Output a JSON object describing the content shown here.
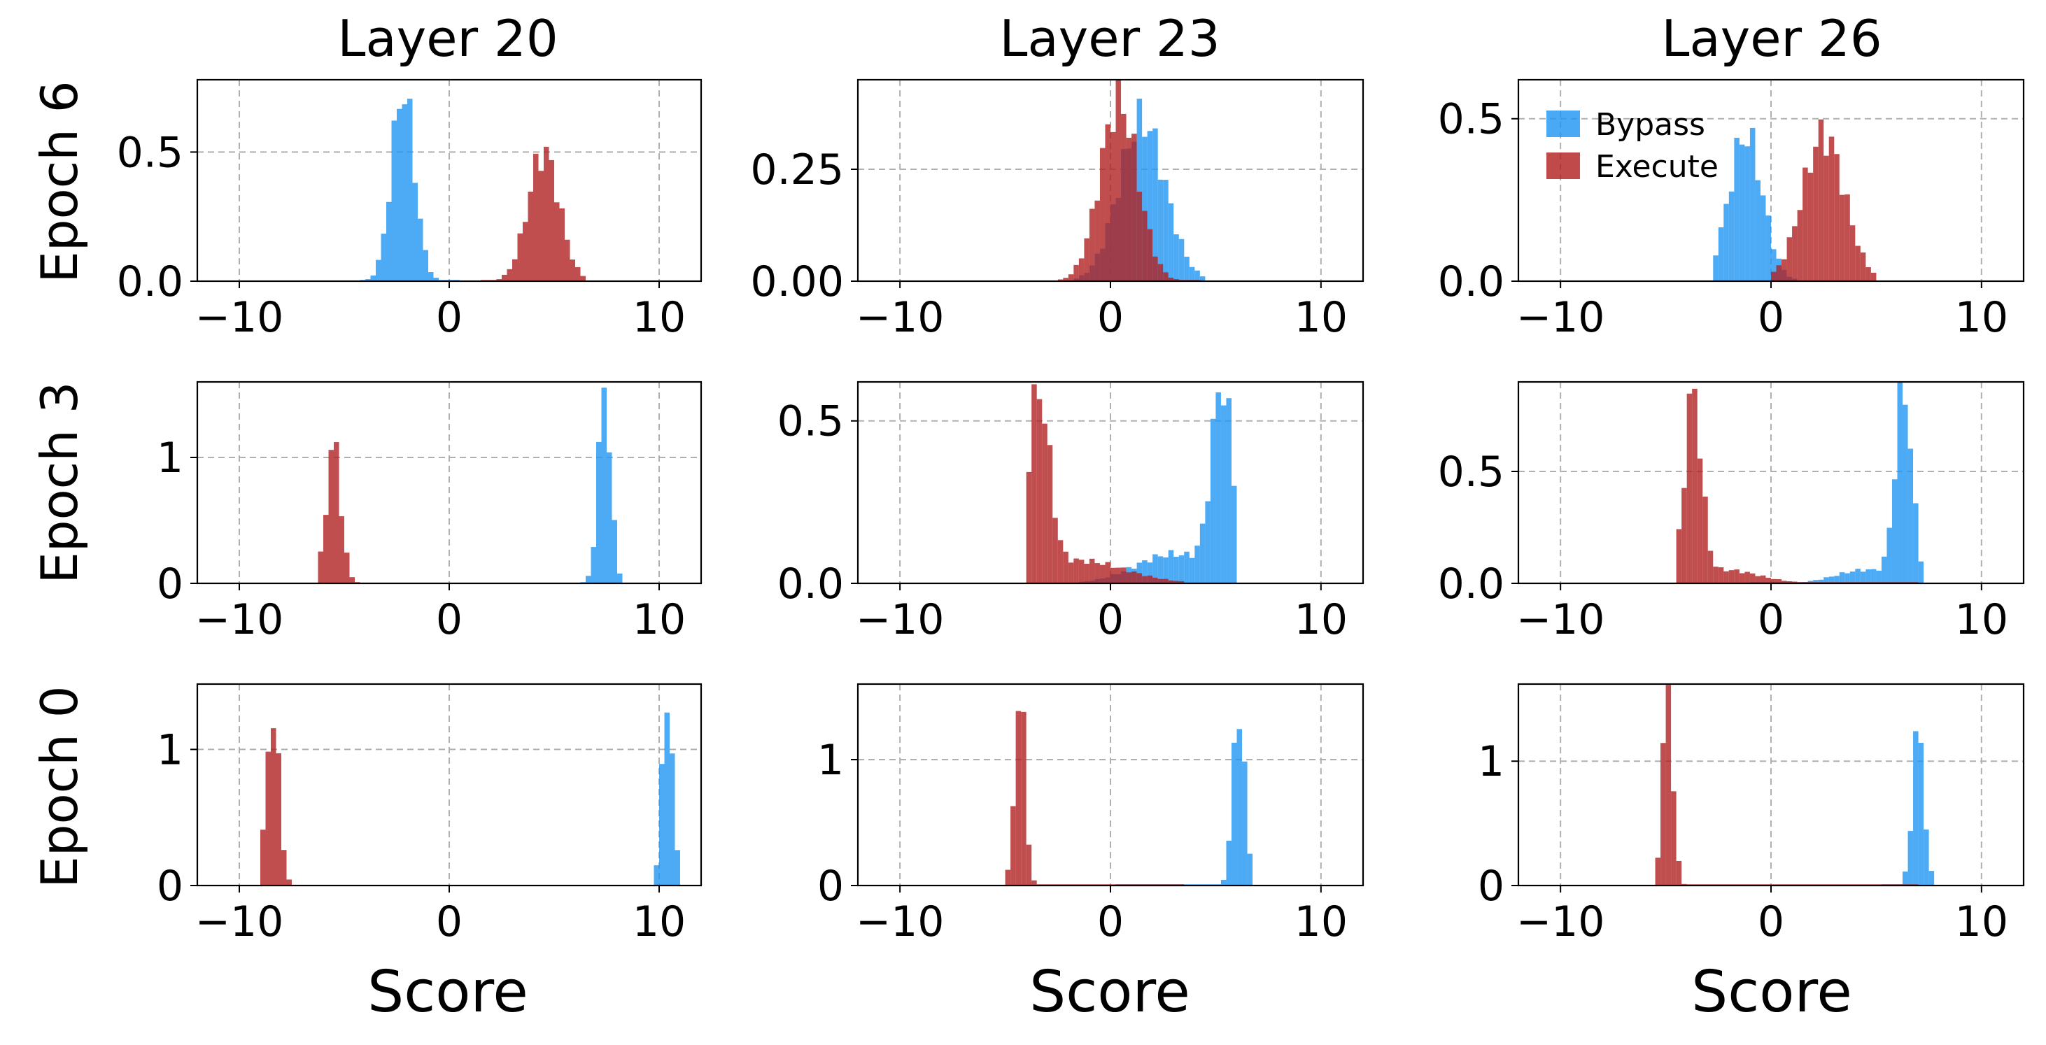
{
  "colors": {
    "bypass": "#2196f3",
    "execute": "#b22222",
    "grid": "#b0b0b0"
  },
  "legend": {
    "placement": "upper-left",
    "panel": "Epoch 6 / Layer 26",
    "entries": [
      "Bypass",
      "Execute"
    ]
  },
  "figure": {
    "column_titles": [
      "Layer 20",
      "Layer 23",
      "Layer 26"
    ],
    "row_labels": [
      "Epoch 6",
      "Epoch 3",
      "Epoch 0"
    ],
    "xlabel": "Score"
  },
  "chart_data": [
    {
      "type": "histogram",
      "row": "Epoch 6",
      "column": "Layer 20",
      "xlim": [
        -12,
        12
      ],
      "ylim": [
        0,
        0.78
      ],
      "xticks": [
        "−10",
        "0",
        "10"
      ],
      "yticks": [
        {
          "value": 0,
          "label": "0.0"
        },
        {
          "value": 0.5,
          "label": "0.5"
        }
      ],
      "grid": true,
      "series": [
        {
          "name": "Bypass",
          "peaks": [
            {
              "center": -2.2,
              "width": 0.55,
              "height": 0.74
            }
          ],
          "range": [
            -4.1,
            0.3
          ]
        },
        {
          "name": "Execute",
          "peaks": [
            {
              "center": 4.5,
              "width": 0.75,
              "height": 0.5
            }
          ],
          "range": [
            1.5,
            6.3
          ]
        }
      ]
    },
    {
      "type": "histogram",
      "row": "Epoch 6",
      "column": "Layer 23",
      "xlim": [
        -12,
        12
      ],
      "ylim": [
        0,
        0.45
      ],
      "xticks": [
        "−10",
        "0",
        "10"
      ],
      "yticks": [
        {
          "value": 0,
          "label": "0.00"
        },
        {
          "value": 0.25,
          "label": "0.25"
        }
      ],
      "grid": true,
      "series": [
        {
          "name": "Bypass",
          "peaks": [
            {
              "center": 1.5,
              "width": 1.1,
              "height": 0.36
            }
          ],
          "range": [
            -1.6,
            4.3
          ]
        },
        {
          "name": "Execute",
          "peaks": [
            {
              "center": 0.4,
              "width": 0.9,
              "height": 0.4
            }
          ],
          "range": [
            -2.4,
            4.2
          ]
        }
      ]
    },
    {
      "type": "histogram",
      "row": "Epoch 6",
      "column": "Layer 26",
      "xlim": [
        -12,
        12
      ],
      "ylim": [
        0,
        0.62
      ],
      "xticks": [
        "−10",
        "0",
        "10"
      ],
      "yticks": [
        {
          "value": 0,
          "label": "0.0"
        },
        {
          "value": 0.5,
          "label": "0.5"
        }
      ],
      "grid": true,
      "series": [
        {
          "name": "Bypass",
          "peaks": [
            {
              "center": -1.2,
              "width": 0.8,
              "height": 0.45
            }
          ],
          "range": [
            -2.7,
            1.1
          ]
        },
        {
          "name": "Execute",
          "peaks": [
            {
              "center": 2.5,
              "width": 1.0,
              "height": 0.45
            }
          ],
          "range": [
            0.1,
            4.9
          ]
        }
      ]
    },
    {
      "type": "histogram",
      "row": "Epoch 3",
      "column": "Layer 20",
      "xlim": [
        -12,
        12
      ],
      "ylim": [
        0,
        1.6
      ],
      "xticks": [
        "−10",
        "0",
        "10"
      ],
      "yticks": [
        {
          "value": 0,
          "label": "0"
        },
        {
          "value": 1,
          "label": "1"
        }
      ],
      "grid": true,
      "series": [
        {
          "name": "Bypass",
          "peaks": [
            {
              "center": 7.4,
              "width": 0.3,
              "height": 1.55
            }
          ],
          "range": [
            6.4,
            8.2
          ]
        },
        {
          "name": "Execute",
          "peaks": [
            {
              "center": -5.5,
              "width": 0.35,
              "height": 1.1
            }
          ],
          "range": [
            -6.1,
            -4.3
          ]
        }
      ]
    },
    {
      "type": "histogram",
      "row": "Epoch 3",
      "column": "Layer 23",
      "xlim": [
        -12,
        12
      ],
      "ylim": [
        0,
        0.62
      ],
      "xticks": [
        "−10",
        "0",
        "10"
      ],
      "yticks": [
        {
          "value": 0,
          "label": "0.0"
        },
        {
          "value": 0.5,
          "label": "0.5"
        }
      ],
      "grid": true,
      "series": [
        {
          "name": "Bypass",
          "peaks": [
            {
              "center": 5.3,
              "width": 0.5,
              "height": 0.58
            },
            {
              "center": 3.0,
              "width": 1.8,
              "height": 0.09
            }
          ],
          "range": [
            -1.5,
            5.8
          ]
        },
        {
          "name": "Execute",
          "peaks": [
            {
              "center": -3.4,
              "width": 0.5,
              "height": 0.55
            },
            {
              "center": -1.5,
              "width": 2.2,
              "height": 0.07
            }
          ],
          "range": [
            -4.0,
            3.5
          ]
        }
      ]
    },
    {
      "type": "histogram",
      "row": "Epoch 3",
      "column": "Layer 26",
      "xlim": [
        -12,
        12
      ],
      "ylim": [
        0,
        0.9
      ],
      "xticks": [
        "−10",
        "0",
        "10"
      ],
      "yticks": [
        {
          "value": 0,
          "label": "0.0"
        },
        {
          "value": 0.5,
          "label": "0.5"
        }
      ],
      "grid": true,
      "series": [
        {
          "name": "Bypass",
          "peaks": [
            {
              "center": 6.3,
              "width": 0.4,
              "height": 0.85
            },
            {
              "center": 4.5,
              "width": 1.4,
              "height": 0.06
            }
          ],
          "range": [
            -1.0,
            7.1
          ]
        },
        {
          "name": "Execute",
          "peaks": [
            {
              "center": -3.7,
              "width": 0.4,
              "height": 0.82
            },
            {
              "center": -2.2,
              "width": 1.6,
              "height": 0.06
            }
          ],
          "range": [
            -4.3,
            6.9
          ]
        }
      ]
    },
    {
      "type": "histogram",
      "row": "Epoch 0",
      "column": "Layer 20",
      "xlim": [
        -12,
        12
      ],
      "ylim": [
        0,
        1.48
      ],
      "xticks": [
        "−10",
        "0",
        "10"
      ],
      "yticks": [
        {
          "value": 0,
          "label": "0"
        },
        {
          "value": 1,
          "label": "1"
        }
      ],
      "grid": true,
      "series": [
        {
          "name": "Bypass",
          "peaks": [
            {
              "center": 10.4,
              "width": 0.25,
              "height": 1.44
            }
          ],
          "range": [
            9.8,
            11.0
          ]
        },
        {
          "name": "Execute",
          "peaks": [
            {
              "center": -8.4,
              "width": 0.3,
              "height": 1.3
            }
          ],
          "range": [
            -9.0,
            -7.6
          ]
        }
      ]
    },
    {
      "type": "histogram",
      "row": "Epoch 0",
      "column": "Layer 23",
      "xlim": [
        -12,
        12
      ],
      "ylim": [
        0,
        1.6
      ],
      "xticks": [
        "−10",
        "0",
        "10"
      ],
      "yticks": [
        {
          "value": 0,
          "label": "0"
        },
        {
          "value": 1,
          "label": "1"
        }
      ],
      "grid": true,
      "series": [
        {
          "name": "Bypass",
          "peaks": [
            {
              "center": 6.1,
              "width": 0.28,
              "height": 1.45
            }
          ],
          "range": [
            0.3,
            6.6
          ]
        },
        {
          "name": "Execute",
          "peaks": [
            {
              "center": -4.3,
              "width": 0.25,
              "height": 1.55
            }
          ],
          "range": [
            -4.8,
            3.5
          ]
        }
      ]
    },
    {
      "type": "histogram",
      "row": "Epoch 0",
      "column": "Layer 26",
      "xlim": [
        -12,
        12
      ],
      "ylim": [
        0,
        1.62
      ],
      "xticks": [
        "−10",
        "0",
        "10"
      ],
      "yticks": [
        {
          "value": 0,
          "label": "0"
        },
        {
          "value": 1,
          "label": "1"
        }
      ],
      "grid": true,
      "series": [
        {
          "name": "Bypass",
          "peaks": [
            {
              "center": 7.0,
              "width": 0.28,
              "height": 1.25
            }
          ],
          "range": [
            5.3,
            7.6
          ]
        },
        {
          "name": "Execute",
          "peaks": [
            {
              "center": -4.9,
              "width": 0.25,
              "height": 1.58
            }
          ],
          "range": [
            -5.3,
            6.8
          ]
        }
      ]
    }
  ]
}
